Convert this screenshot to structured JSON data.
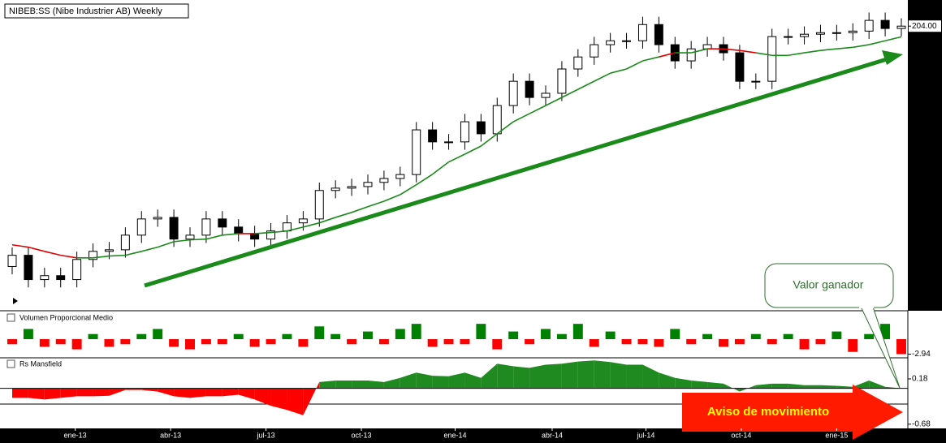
{
  "chart_data": [
    {
      "type": "candlestick",
      "title": "NIBEB:SS (Nibe Industrier AB) Weekly",
      "categories": [
        null,
        null,
        null,
        null,
        null,
        null,
        null,
        null,
        null,
        null,
        null,
        null,
        null,
        null,
        null,
        null,
        null,
        null,
        null,
        null,
        null,
        null,
        null,
        null,
        null,
        null,
        null,
        null,
        null,
        null,
        null,
        null,
        null,
        null,
        null,
        null,
        null,
        null,
        null,
        null,
        null,
        null,
        null,
        null,
        null,
        null,
        null,
        null,
        null,
        null,
        null,
        null,
        null,
        null,
        null,
        null
      ],
      "open": [
        112.0,
        116.3,
        107.0,
        108.5,
        107.0,
        114.7,
        117.8,
        118.4,
        124.0,
        130.2,
        130.8,
        122.5,
        124.0,
        130.2,
        127.1,
        124.6,
        122.5,
        125.6,
        128.7,
        130.2,
        141.1,
        142.0,
        142.6,
        144.2,
        145.7,
        147.2,
        164.3,
        159.7,
        159.7,
        167.4,
        162.8,
        173.6,
        182.9,
        176.7,
        178.3,
        187.6,
        192.2,
        196.9,
        198.4,
        198.4,
        204.6,
        196.9,
        190.7,
        195.3,
        196.9,
        193.8,
        182.9,
        182.9,
        200.0,
        200.0,
        200.9,
        201.5,
        201.5,
        202.1,
        206.2,
        203.1
      ],
      "high": [
        119.3,
        119.3,
        111.5,
        111.5,
        117.7,
        120.8,
        121.4,
        127.0,
        133.2,
        133.8,
        133.8,
        127.0,
        133.2,
        133.2,
        130.1,
        127.6,
        128.6,
        131.7,
        133.2,
        144.1,
        145.0,
        145.6,
        147.2,
        148.7,
        150.2,
        167.3,
        167.3,
        162.7,
        170.4,
        170.4,
        176.6,
        185.9,
        185.9,
        181.3,
        190.6,
        195.2,
        199.9,
        201.4,
        201.4,
        207.6,
        207.6,
        199.9,
        198.3,
        199.9,
        199.9,
        196.8,
        185.9,
        203.0,
        203.0,
        203.9,
        204.5,
        204.5,
        205.1,
        209.2,
        209.2,
        207.0
      ],
      "low": [
        109.0,
        104.0,
        104.0,
        104.0,
        104.0,
        111.7,
        114.8,
        115.4,
        121.0,
        127.2,
        119.5,
        119.5,
        121.0,
        124.1,
        121.6,
        119.5,
        119.5,
        122.6,
        125.7,
        127.2,
        138.1,
        139.0,
        139.6,
        141.2,
        142.7,
        144.2,
        156.7,
        156.7,
        156.7,
        159.8,
        159.8,
        170.6,
        173.7,
        173.7,
        175.3,
        184.6,
        189.2,
        193.9,
        195.4,
        195.4,
        193.9,
        187.7,
        187.7,
        192.3,
        190.8,
        179.9,
        179.9,
        179.9,
        197.0,
        197.0,
        197.9,
        198.5,
        198.5,
        199.1,
        200.1,
        200.1
      ],
      "close": [
        116.3,
        107.0,
        108.5,
        107.0,
        114.7,
        117.8,
        118.4,
        124.0,
        130.2,
        130.8,
        122.5,
        124.0,
        130.2,
        127.1,
        124.6,
        122.5,
        125.6,
        128.7,
        130.2,
        141.1,
        142.0,
        142.6,
        144.2,
        145.7,
        147.2,
        164.3,
        159.7,
        159.7,
        167.4,
        162.8,
        173.6,
        182.9,
        176.7,
        178.3,
        187.6,
        192.2,
        196.9,
        198.4,
        198.4,
        204.6,
        196.9,
        190.7,
        195.3,
        196.9,
        193.8,
        182.9,
        182.9,
        200.0,
        200.0,
        200.9,
        201.5,
        201.5,
        202.1,
        206.2,
        203.1,
        204.0
      ],
      "moving_average": {
        "up_color": "#1a8a1a",
        "down_color": "#e00000",
        "values": [
          120.3,
          119.4,
          117.8,
          116.3,
          115.3,
          115.3,
          116.0,
          116.3,
          117.8,
          119.4,
          121.5,
          122.2,
          122.5,
          124.0,
          124.6,
          124.6,
          125.0,
          125.6,
          127.1,
          128.7,
          130.8,
          132.7,
          134.9,
          137.0,
          139.5,
          143.3,
          147.3,
          152.0,
          155.0,
          158.1,
          162.8,
          167.4,
          170.5,
          173.6,
          176.7,
          179.8,
          182.9,
          186.0,
          187.6,
          190.7,
          192.2,
          193.8,
          193.8,
          195.3,
          195.3,
          194.7,
          193.8,
          192.8,
          192.8,
          193.8,
          194.7,
          195.3,
          195.9,
          196.9,
          198.4,
          199.9
        ]
      },
      "ylim": [
        96,
        214
      ],
      "yticks": [
        {
          "value": 204,
          "label": "204.00"
        }
      ],
      "annotations": [
        "Valor ganador",
        "Aviso de movimiento"
      ]
    },
    {
      "type": "bar",
      "title": "Volumen Proporcional Medio",
      "categories": [
        null,
        null,
        null,
        null,
        null,
        null,
        null,
        null,
        null,
        null,
        null,
        null,
        null,
        null,
        null,
        null,
        null,
        null,
        null,
        null,
        null,
        null,
        null,
        null,
        null,
        null,
        null,
        null,
        null,
        null,
        null,
        null,
        null,
        null,
        null,
        null,
        null,
        null,
        null,
        null,
        null,
        null,
        null,
        null,
        null,
        null,
        null,
        null,
        null,
        null,
        null,
        null,
        null,
        null,
        null,
        null
      ],
      "values": [
        -1,
        2,
        -1.5,
        -1,
        -2,
        1,
        -1.5,
        -1,
        1,
        2,
        -1.5,
        -2,
        -1,
        -1,
        1,
        -1.5,
        -1,
        1,
        -1.5,
        2.5,
        1,
        -1,
        1.5,
        -1,
        2,
        3,
        -1.5,
        -1,
        -1,
        3,
        -2,
        1.5,
        -1,
        2,
        1,
        3,
        -1.5,
        1.5,
        -1,
        -1,
        -1.5,
        2,
        -1,
        1,
        -1.5,
        -1,
        1,
        -1,
        1,
        -2,
        -1,
        1.5,
        -2.5,
        1,
        3,
        -2.94
      ],
      "positive_color": "#008000",
      "negative_color": "#ff0000",
      "ylim": [
        -3.5,
        3.5
      ],
      "yticks": [
        {
          "value": -2.94,
          "label": "-2.94"
        }
      ]
    },
    {
      "type": "area",
      "title": "Rs Mansfield",
      "categories": [
        null,
        null,
        null,
        null,
        null,
        null,
        null,
        null,
        null,
        null,
        null,
        null,
        null,
        null,
        null,
        null,
        null,
        null,
        null,
        null,
        null,
        null,
        null,
        null,
        null,
        null,
        null,
        null,
        null,
        null,
        null,
        null,
        null,
        null,
        null,
        null,
        null,
        null,
        null,
        null,
        null,
        null,
        null,
        null,
        null,
        null,
        null,
        null,
        null,
        null,
        null,
        null,
        null,
        null,
        null,
        null
      ],
      "values": [
        -0.18,
        -0.18,
        -0.21,
        -0.18,
        -0.15,
        -0.15,
        -0.14,
        -0.03,
        -0.03,
        -0.06,
        -0.15,
        -0.18,
        -0.15,
        -0.15,
        -0.12,
        -0.21,
        -0.33,
        -0.41,
        -0.51,
        0.12,
        0.15,
        0.15,
        0.15,
        0.12,
        0.2,
        0.3,
        0.24,
        0.23,
        0.3,
        0.2,
        0.47,
        0.42,
        0.39,
        0.45,
        0.47,
        0.51,
        0.53,
        0.5,
        0.45,
        0.45,
        0.3,
        0.2,
        0.15,
        0.12,
        0.09,
        -0.06,
        0.06,
        0.09,
        0.09,
        0.06,
        0.06,
        0.05,
        0.03,
        0.15,
        0.03,
        0
      ],
      "positive_color": "#1f8a1f",
      "negative_color": "#ff0000",
      "ylim": [
        -0.76,
        0.55
      ],
      "yticks": [
        0.18,
        -0.68
      ],
      "xticks": [
        {
          "value": 3.9,
          "label": "ene-13"
        },
        {
          "value": 9.8,
          "label": "abr-13"
        },
        {
          "value": 15.7,
          "label": "jul-13"
        },
        {
          "value": 21.6,
          "label": "oct-13"
        },
        {
          "value": 27.4,
          "label": "ene-14"
        },
        {
          "value": 33.4,
          "label": "abr-14"
        },
        {
          "value": 39.2,
          "label": "jul-14"
        },
        {
          "value": 45.1,
          "label": "oct-14"
        },
        {
          "value": 51.0,
          "label": "ene-15"
        }
      ]
    }
  ]
}
